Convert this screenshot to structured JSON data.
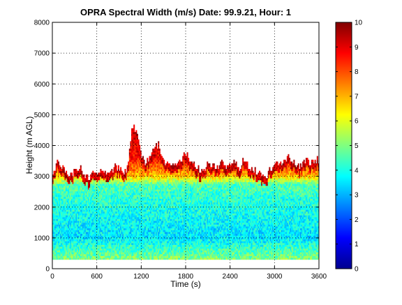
{
  "chart_data": {
    "type": "heatmap",
    "title": "OPRA Spectral Width (m/s)  Date: 99.9.21, Hour: 1",
    "xlabel": "Time (s)",
    "ylabel": "Height (m AGL)",
    "xlim": [
      0,
      3600
    ],
    "ylim": [
      0,
      8000
    ],
    "x_ticks": [
      "0",
      "600",
      "1200",
      "1800",
      "2400",
      "3000",
      "3600"
    ],
    "y_ticks": [
      "0",
      "1000",
      "2000",
      "3000",
      "4000",
      "5000",
      "6000",
      "7000",
      "8000"
    ],
    "grid": true,
    "colormap": "jet",
    "colorbar": {
      "range": [
        0,
        10
      ],
      "ticks": [
        "0",
        "1",
        "2",
        "3",
        "4",
        "5",
        "6",
        "7",
        "8",
        "9",
        "10"
      ]
    },
    "data_height_range_m": [
      300,
      4800
    ],
    "x": [
      0,
      60,
      120,
      180,
      240,
      300,
      360,
      420,
      480,
      540,
      600,
      660,
      720,
      780,
      840,
      900,
      960,
      1020,
      1080,
      1140,
      1200,
      1260,
      1320,
      1380,
      1440,
      1500,
      1560,
      1620,
      1680,
      1740,
      1800,
      1860,
      1920,
      1980,
      2040,
      2100,
      2160,
      2220,
      2280,
      2340,
      2400,
      2460,
      2520,
      2580,
      2640,
      2700,
      2760,
      2820,
      2880,
      2940,
      3000,
      3060,
      3120,
      3180,
      3240,
      3300,
      3360,
      3420,
      3480,
      3540,
      3600
    ],
    "echo_top_m": [
      2900,
      3400,
      3300,
      3100,
      3000,
      3100,
      3300,
      3000,
      2900,
      3000,
      3100,
      3200,
      3000,
      3100,
      3300,
      3200,
      3100,
      3300,
      4700,
      4400,
      3700,
      3400,
      3600,
      3900,
      4000,
      3500,
      3300,
      3400,
      3300,
      3500,
      3800,
      3500,
      3300,
      3200,
      3100,
      3400,
      3300,
      3300,
      3400,
      3200,
      3300,
      3400,
      3200,
      3500,
      3300,
      3200,
      3100,
      3000,
      2900,
      3200,
      3400,
      3300,
      3500,
      3600,
      3500,
      3300,
      3300,
      3500,
      3400,
      3500,
      3500
    ],
    "width_by_height": {
      "heights_m": [
        300,
        1000,
        2000,
        2700,
        3000,
        3500,
        4000,
        4500
      ],
      "typical_width_m_s": [
        5,
        3.5,
        4,
        4.5,
        7,
        8.5,
        9,
        9.5
      ]
    }
  }
}
